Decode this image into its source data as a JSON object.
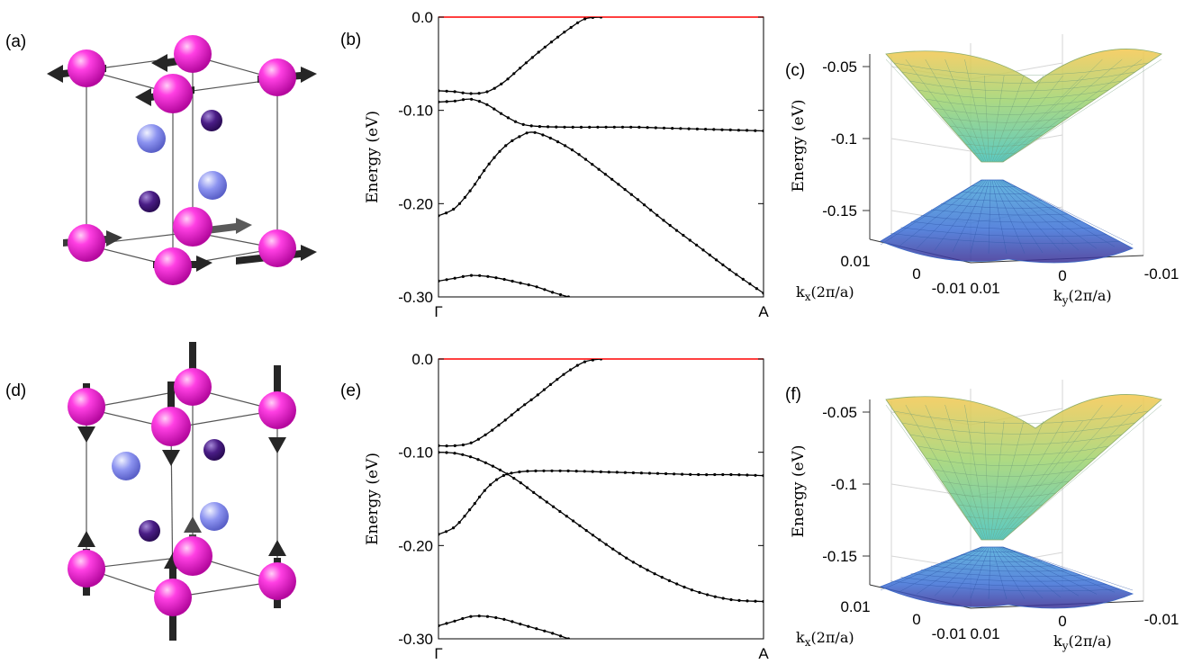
{
  "panel_labels": {
    "a": "(a)",
    "b": "(b)",
    "c": "(c)",
    "d": "(d)",
    "e": "(e)",
    "f": "(f)"
  },
  "structures": {
    "a": {
      "moment_direction": "in-plane"
    },
    "d": {
      "moment_direction": "out-of-plane"
    }
  },
  "colors": {
    "big_atom": "#e21fce",
    "small_atom_light": "#8c93f0",
    "small_atom_dark": "#4a1d86",
    "arrow": "#262626",
    "fermi_line": "#ff0000",
    "band": "#000000"
  },
  "chart_data": [
    {
      "panel": "b",
      "type": "line",
      "ylabel": "Energy (eV)",
      "ylim": [
        -0.3,
        0.0
      ],
      "yticks": [
        "0.0",
        "-0.10",
        "-0.20",
        "-0.30"
      ],
      "xticks": [
        "Γ",
        "A"
      ],
      "xlim": [
        0,
        1
      ],
      "fermi_level": 0.0,
      "series": [
        {
          "x": [
            0,
            0.05,
            0.1,
            0.15,
            0.2,
            0.25,
            0.3,
            0.35,
            0.4,
            0.45,
            0.5
          ],
          "values": [
            -0.079,
            -0.08,
            -0.082,
            -0.08,
            -0.07,
            -0.055,
            -0.04,
            -0.026,
            -0.013,
            -0.002,
            0.0
          ]
        },
        {
          "x": [
            0,
            0.05,
            0.1,
            0.15,
            0.2,
            0.25,
            0.3,
            0.4,
            0.5,
            0.6,
            0.7,
            0.8,
            0.9,
            1.0
          ],
          "values": [
            -0.091,
            -0.09,
            -0.088,
            -0.094,
            -0.105,
            -0.114,
            -0.117,
            -0.118,
            -0.118,
            -0.118,
            -0.119,
            -0.12,
            -0.121,
            -0.122
          ]
        },
        {
          "x": [
            0,
            0.05,
            0.1,
            0.15,
            0.2,
            0.25,
            0.3,
            0.4,
            0.5,
            0.6,
            0.7,
            0.8,
            0.9,
            1.0
          ],
          "values": [
            -0.213,
            -0.205,
            -0.185,
            -0.16,
            -0.14,
            -0.128,
            -0.124,
            -0.14,
            -0.165,
            -0.192,
            -0.22,
            -0.246,
            -0.272,
            -0.296
          ]
        },
        {
          "x": [
            0,
            0.05,
            0.1,
            0.15,
            0.2,
            0.25,
            0.3,
            0.35,
            0.4
          ],
          "values": [
            -0.283,
            -0.28,
            -0.277,
            -0.278,
            -0.281,
            -0.285,
            -0.289,
            -0.295,
            -0.3
          ]
        }
      ]
    },
    {
      "panel": "e",
      "type": "line",
      "ylabel": "Energy (eV)",
      "ylim": [
        -0.3,
        0.0
      ],
      "yticks": [
        "0.0",
        "-0.10",
        "-0.20",
        "-0.30"
      ],
      "xticks": [
        "Γ",
        "A"
      ],
      "xlim": [
        0,
        1
      ],
      "fermi_level": 0.0,
      "series": [
        {
          "x": [
            0,
            0.05,
            0.1,
            0.15,
            0.2,
            0.25,
            0.3,
            0.35,
            0.4,
            0.45,
            0.5
          ],
          "values": [
            -0.093,
            -0.093,
            -0.09,
            -0.08,
            -0.067,
            -0.053,
            -0.04,
            -0.026,
            -0.013,
            -0.003,
            0.0
          ]
        },
        {
          "x": [
            0,
            0.05,
            0.1,
            0.15,
            0.2,
            0.25,
            0.3,
            0.4,
            0.5,
            0.6,
            0.7,
            0.8,
            0.9,
            1.0
          ],
          "values": [
            -0.1,
            -0.101,
            -0.105,
            -0.112,
            -0.121,
            -0.132,
            -0.145,
            -0.17,
            -0.195,
            -0.218,
            -0.236,
            -0.25,
            -0.258,
            -0.26
          ]
        },
        {
          "x": [
            0,
            0.05,
            0.1,
            0.15,
            0.2,
            0.25,
            0.3,
            0.4,
            0.5,
            0.6,
            0.7,
            0.8,
            0.9,
            1.0
          ],
          "values": [
            -0.188,
            -0.18,
            -0.16,
            -0.138,
            -0.125,
            -0.121,
            -0.12,
            -0.12,
            -0.121,
            -0.122,
            -0.123,
            -0.124,
            -0.124,
            -0.125
          ]
        },
        {
          "x": [
            0,
            0.05,
            0.1,
            0.15,
            0.2,
            0.25,
            0.3,
            0.35,
            0.4
          ],
          "values": [
            -0.286,
            -0.281,
            -0.276,
            -0.276,
            -0.279,
            -0.284,
            -0.289,
            -0.294,
            -0.3
          ]
        }
      ]
    },
    {
      "panel": "c",
      "type": "surface",
      "zlabel": "Energy (eV)",
      "zticks": [
        "-0.05",
        "-0.1",
        "-0.15"
      ],
      "xlabel": "k_x(2π/a)",
      "ylabel": "k_y(2π/a)",
      "xticks": [
        "0.01",
        "0",
        "-0.01"
      ],
      "yticks": [
        "0.01",
        "0",
        "-0.01"
      ],
      "gap": "gapped"
    },
    {
      "panel": "f",
      "type": "surface",
      "zlabel": "Energy (eV)",
      "zticks": [
        "-0.05",
        "-0.1",
        "-0.15"
      ],
      "xlabel": "k_x(2π/a)",
      "ylabel": "k_y(2π/a)",
      "xticks": [
        "0.01",
        "0",
        "-0.01"
      ],
      "yticks": [
        "0.01",
        "0",
        "-0.01"
      ],
      "gap": "closed"
    }
  ]
}
